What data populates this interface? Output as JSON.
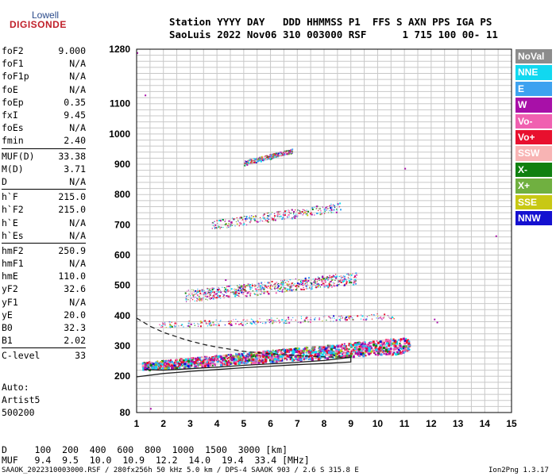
{
  "logo": {
    "line1": "Lowell",
    "line2": "DIGISONDE"
  },
  "header": {
    "row1": "Station YYYY DAY   DDD HHMMSS P1  FFS S AXN PPS IGA PS",
    "row2": "SaoLuis 2022 Nov06 310 003000 RSF      1 715 100 00- 11"
  },
  "params": [
    [
      {
        "name": "foF2",
        "value": "9.000"
      },
      {
        "name": "foF1",
        "value": "N/A"
      },
      {
        "name": "foF1p",
        "value": "N/A"
      },
      {
        "name": "foE",
        "value": "N/A"
      },
      {
        "name": "foEp",
        "value": "0.35"
      },
      {
        "name": "fxI",
        "value": "9.45"
      },
      {
        "name": "foEs",
        "value": "N/A"
      },
      {
        "name": "fmin",
        "value": "2.40"
      }
    ],
    [
      {
        "name": "MUF(D)",
        "value": "33.38"
      },
      {
        "name": "M(D)",
        "value": "3.71"
      },
      {
        "name": "D",
        "value": "N/A"
      }
    ],
    [
      {
        "name": "h`F",
        "value": "215.0"
      },
      {
        "name": "h`F2",
        "value": "215.0"
      },
      {
        "name": "h`E",
        "value": "N/A"
      },
      {
        "name": "h`Es",
        "value": "N/A"
      }
    ],
    [
      {
        "name": "hmF2",
        "value": "250.9"
      },
      {
        "name": "hmF1",
        "value": "N/A"
      },
      {
        "name": "hmE",
        "value": "110.0"
      },
      {
        "name": "yF2",
        "value": "32.6"
      },
      {
        "name": "yF1",
        "value": "N/A"
      },
      {
        "name": "yE",
        "value": "20.0"
      },
      {
        "name": "B0",
        "value": "32.3"
      },
      {
        "name": "B1",
        "value": "2.02"
      }
    ],
    [
      {
        "name": "C-level",
        "value": "33"
      }
    ]
  ],
  "auto": {
    "line1": "Auto:",
    "line2": "Artist5",
    "line3": "500200"
  },
  "legend": [
    {
      "label": "NoVal",
      "color": "#8c8c8c"
    },
    {
      "label": "NNE",
      "color": "#11d8f0"
    },
    {
      "label": "E",
      "color": "#3da2f0"
    },
    {
      "label": "W",
      "color": "#a810a8"
    },
    {
      "label": "Vo-",
      "color": "#f060b0"
    },
    {
      "label": "Vo+",
      "color": "#e8102e"
    },
    {
      "label": "SSW",
      "color": "#f8b4b4"
    },
    {
      "label": "X-",
      "color": "#108010"
    },
    {
      "label": "X+",
      "color": "#70b040"
    },
    {
      "label": "SSE",
      "color": "#c8c814"
    },
    {
      "label": "NNW",
      "color": "#1410d0"
    }
  ],
  "muf_table": {
    "d_row": "D     100  200  400  600  800  1000  1500  3000 [km]",
    "muf_row": "MUF   9.4  9.5  10.0  10.9  12.2  14.0  19.4  33.4 [MHz]"
  },
  "footer": {
    "left": "SAAOK_2022310003000.RSF / 280fx256h 50 kHz 5.0 km / DPS-4 SAAOK 903 / 2.6 S 315.8 E",
    "right": "Ion2Png 1.3.17"
  },
  "chart_data": {
    "type": "scatter",
    "xlim": [
      1,
      15
    ],
    "ylim": [
      80,
      1280
    ],
    "x_ticks": [
      1,
      2,
      3,
      4,
      5,
      6,
      7,
      8,
      9,
      10,
      11,
      12,
      13,
      14,
      15
    ],
    "y_ticks": [
      80,
      200,
      300,
      400,
      500,
      600,
      700,
      800,
      900,
      1000,
      1100,
      1280
    ],
    "grid": true,
    "traces": [
      {
        "name": "E-trace dashed",
        "style": "dashed",
        "points": [
          [
            1.0,
            392
          ],
          [
            1.5,
            365
          ],
          [
            2.0,
            345
          ],
          [
            2.5,
            330
          ],
          [
            3.0,
            316
          ],
          [
            3.5,
            305
          ],
          [
            4.0,
            296
          ],
          [
            5.0,
            282
          ],
          [
            6.0,
            274
          ],
          [
            7.0,
            268
          ],
          [
            8.0,
            264
          ],
          [
            9.0,
            262
          ]
        ]
      },
      {
        "name": "F-trace solid",
        "style": "solid",
        "points": [
          [
            1.0,
            198
          ],
          [
            2.0,
            209
          ],
          [
            3.0,
            216
          ],
          [
            4.0,
            222
          ],
          [
            5.0,
            228
          ],
          [
            6.0,
            233
          ],
          [
            7.0,
            238
          ],
          [
            8.0,
            242
          ],
          [
            9.0,
            247
          ],
          [
            9.0,
            262
          ],
          [
            8.0,
            252
          ],
          [
            7.0,
            246
          ],
          [
            6.0,
            241
          ],
          [
            5.0,
            236
          ],
          [
            4.0,
            230
          ],
          [
            3.0,
            225
          ],
          [
            2.0,
            220
          ],
          [
            1.3,
            222
          ]
        ]
      }
    ],
    "echo_bands": [
      {
        "name": "F1 echo",
        "x": [
          1.2,
          11.2
        ],
        "y_start": 235,
        "y_end": 305,
        "spread": 26
      },
      {
        "name": "F2 echo",
        "x": [
          2.8,
          9.2
        ],
        "y_start": 465,
        "y_end": 525,
        "spread": 40
      },
      {
        "name": "F3 echo",
        "x": [
          3.8,
          8.6
        ],
        "y_start": 700,
        "y_end": 760,
        "spread": 30
      },
      {
        "name": "F4 echo",
        "x": [
          5.0,
          6.8
        ],
        "y_start": 905,
        "y_end": 945,
        "spread": 15
      },
      {
        "name": "Oblique echo",
        "x": [
          1.8,
          10.6
        ],
        "y_start": 370,
        "y_end": 400,
        "spread": 20
      }
    ],
    "isolated_points": [
      [
        14.4,
        665
      ],
      [
        12.1,
        390
      ],
      [
        11.0,
        888
      ],
      [
        1.0,
        1270
      ],
      [
        1.3,
        1130
      ],
      [
        4.3,
        520
      ],
      [
        12.2,
        380
      ],
      [
        1.5,
        95
      ]
    ]
  }
}
